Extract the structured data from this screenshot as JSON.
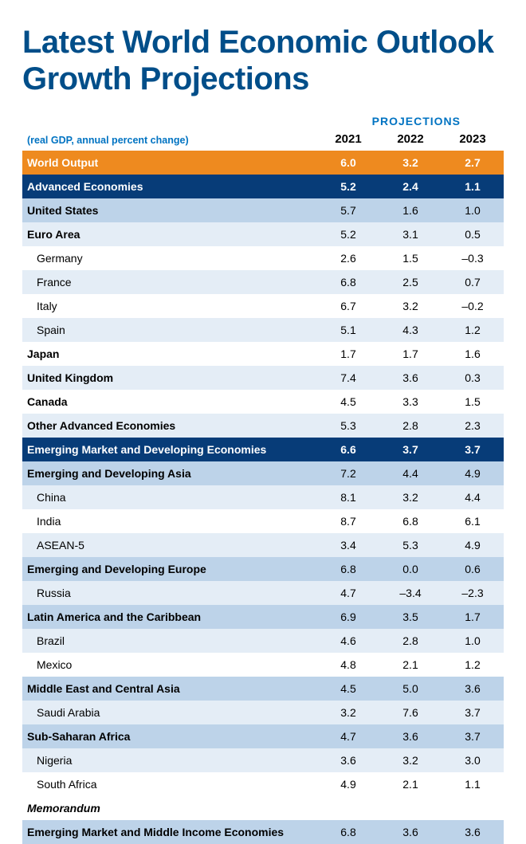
{
  "title": "Latest World Economic Outlook Growth Projections",
  "title_color": "#004e89",
  "projections_label": "PROJECTIONS",
  "projections_color": "#0073c2",
  "subtitle": "(real GDP, annual percent change)",
  "subtitle_color": "#0073c2",
  "years": [
    "2021",
    "2022",
    "2023"
  ],
  "colors": {
    "orange": "#ee8a1f",
    "darkblue": "#073c78",
    "medblue": "#bdd3e9",
    "lightblue": "#e4edf6",
    "white": "#ffffff"
  },
  "rows": [
    {
      "label": "World Output",
      "values": [
        "6.0",
        "3.2",
        "2.7"
      ],
      "style": "orange",
      "indent": 0
    },
    {
      "label": "Advanced Economies",
      "values": [
        "5.2",
        "2.4",
        "1.1"
      ],
      "style": "darkblue",
      "indent": 0
    },
    {
      "label": "United States",
      "values": [
        "5.7",
        "1.6",
        "1.0"
      ],
      "style": "medblue",
      "indent": 0
    },
    {
      "label": "Euro Area",
      "values": [
        "5.2",
        "3.1",
        "0.5"
      ],
      "style": "lightblue",
      "indent": 0
    },
    {
      "label": "Germany",
      "values": [
        "2.6",
        "1.5",
        "–0.3"
      ],
      "style": "white",
      "indent": 1
    },
    {
      "label": "France",
      "values": [
        "6.8",
        "2.5",
        "0.7"
      ],
      "style": "lightblue",
      "indent": 1
    },
    {
      "label": "Italy",
      "values": [
        "6.7",
        "3.2",
        "–0.2"
      ],
      "style": "white",
      "indent": 1
    },
    {
      "label": "Spain",
      "values": [
        "5.1",
        "4.3",
        "1.2"
      ],
      "style": "lightblue",
      "indent": 1
    },
    {
      "label": "Japan",
      "values": [
        "1.7",
        "1.7",
        "1.6"
      ],
      "style": "white",
      "indent": 0
    },
    {
      "label": "United Kingdom",
      "values": [
        "7.4",
        "3.6",
        "0.3"
      ],
      "style": "lightblue",
      "indent": 0
    },
    {
      "label": "Canada",
      "values": [
        "4.5",
        "3.3",
        "1.5"
      ],
      "style": "white",
      "indent": 0
    },
    {
      "label": "Other Advanced Economies",
      "values": [
        "5.3",
        "2.8",
        "2.3"
      ],
      "style": "lightblue",
      "indent": 0
    },
    {
      "label": "Emerging Market and Developing Economies",
      "values": [
        "6.6",
        "3.7",
        "3.7"
      ],
      "style": "darkblue",
      "indent": 0
    },
    {
      "label": "Emerging and Developing Asia",
      "values": [
        "7.2",
        "4.4",
        "4.9"
      ],
      "style": "medblue",
      "indent": 0
    },
    {
      "label": "China",
      "values": [
        "8.1",
        "3.2",
        "4.4"
      ],
      "style": "lightblue",
      "indent": 1
    },
    {
      "label": "India",
      "values": [
        "8.7",
        "6.8",
        "6.1"
      ],
      "style": "white",
      "indent": 1
    },
    {
      "label": "ASEAN-5",
      "values": [
        "3.4",
        "5.3",
        "4.9"
      ],
      "style": "lightblue",
      "indent": 1
    },
    {
      "label": "Emerging and Developing Europe",
      "values": [
        "6.8",
        "0.0",
        "0.6"
      ],
      "style": "medblue",
      "indent": 0
    },
    {
      "label": "Russia",
      "values": [
        "4.7",
        "–3.4",
        "–2.3"
      ],
      "style": "lightblue",
      "indent": 1
    },
    {
      "label": "Latin America and the Caribbean",
      "values": [
        "6.9",
        "3.5",
        "1.7"
      ],
      "style": "medblue",
      "indent": 0
    },
    {
      "label": "Brazil",
      "values": [
        "4.6",
        "2.8",
        "1.0"
      ],
      "style": "lightblue",
      "indent": 1
    },
    {
      "label": "Mexico",
      "values": [
        "4.8",
        "2.1",
        "1.2"
      ],
      "style": "white",
      "indent": 1
    },
    {
      "label": "Middle East and Central Asia",
      "values": [
        "4.5",
        "5.0",
        "3.6"
      ],
      "style": "medblue",
      "indent": 0
    },
    {
      "label": "Saudi Arabia",
      "values": [
        "3.2",
        "7.6",
        "3.7"
      ],
      "style": "lightblue",
      "indent": 1
    },
    {
      "label": "Sub-Saharan Africa",
      "values": [
        "4.7",
        "3.6",
        "3.7"
      ],
      "style": "medblue",
      "indent": 0
    },
    {
      "label": "Nigeria",
      "values": [
        "3.6",
        "3.2",
        "3.0"
      ],
      "style": "lightblue",
      "indent": 1
    },
    {
      "label": "South Africa",
      "values": [
        "4.9",
        "2.1",
        "1.1"
      ],
      "style": "white",
      "indent": 1
    },
    {
      "label": "Memorandum",
      "values": [
        "",
        "",
        ""
      ],
      "style": "white",
      "indent": 0,
      "italic": true
    },
    {
      "label": "Emerging Market and Middle Income Economies",
      "values": [
        "6.8",
        "3.6",
        "3.6"
      ],
      "style": "medblue",
      "indent": 0
    }
  ]
}
